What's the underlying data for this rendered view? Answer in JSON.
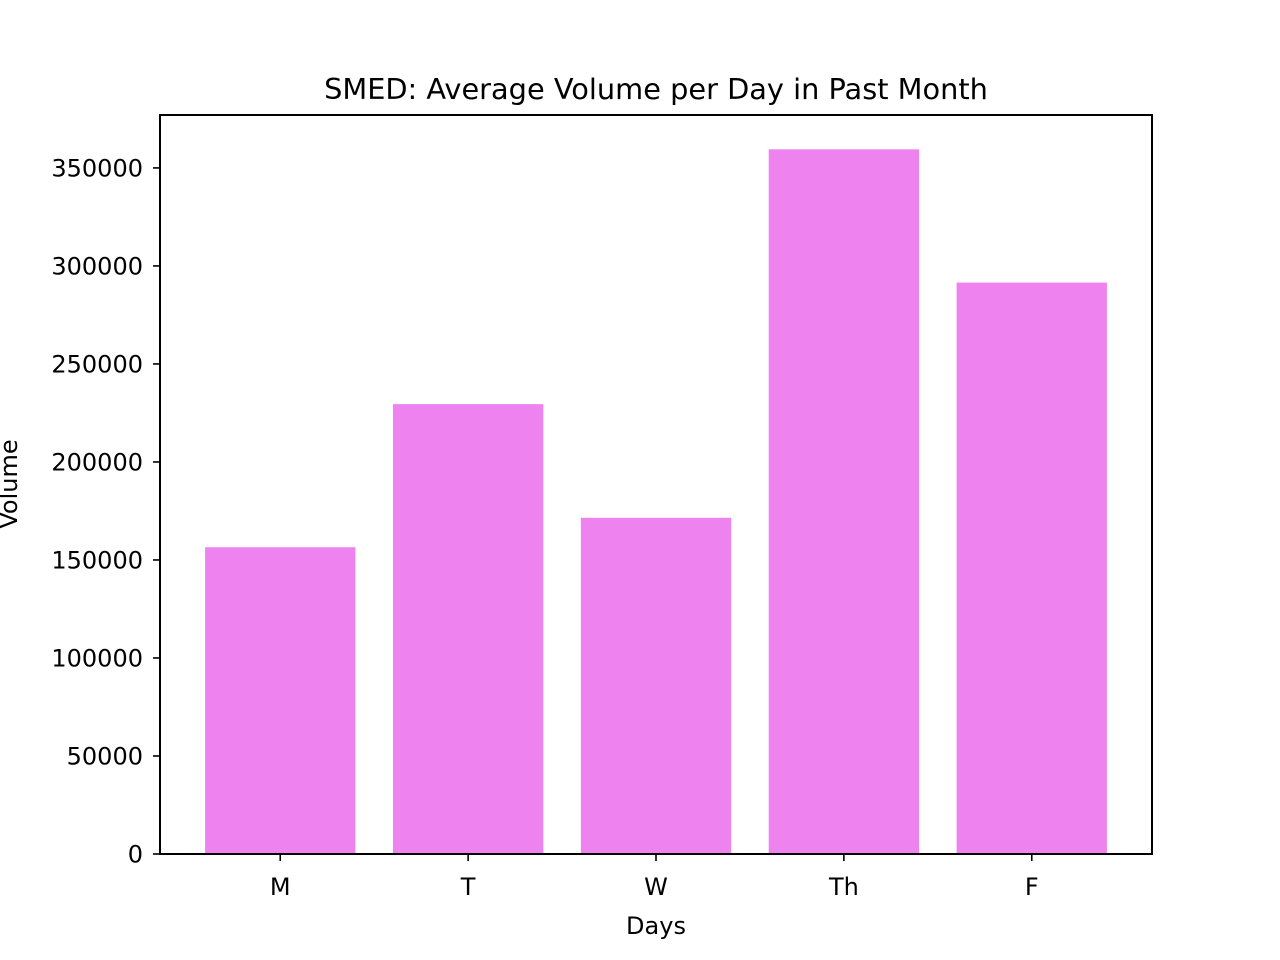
{
  "chart_data": {
    "type": "bar",
    "title": "SMED: Average Volume per Day in Past Month",
    "xlabel": "Days",
    "ylabel": "Volume",
    "categories": [
      "M",
      "T",
      "W",
      "Th",
      "F"
    ],
    "values": [
      156500,
      229500,
      171500,
      359500,
      291500
    ],
    "ylim": [
      0,
      377000
    ],
    "yticks": [
      0,
      50000,
      100000,
      150000,
      200000,
      250000,
      300000,
      350000
    ],
    "ytick_labels": [
      "0",
      "50000",
      "100000",
      "150000",
      "200000",
      "250000",
      "300000",
      "350000"
    ],
    "bar_color": "#ee82ee",
    "grid": false,
    "legend": "none"
  }
}
